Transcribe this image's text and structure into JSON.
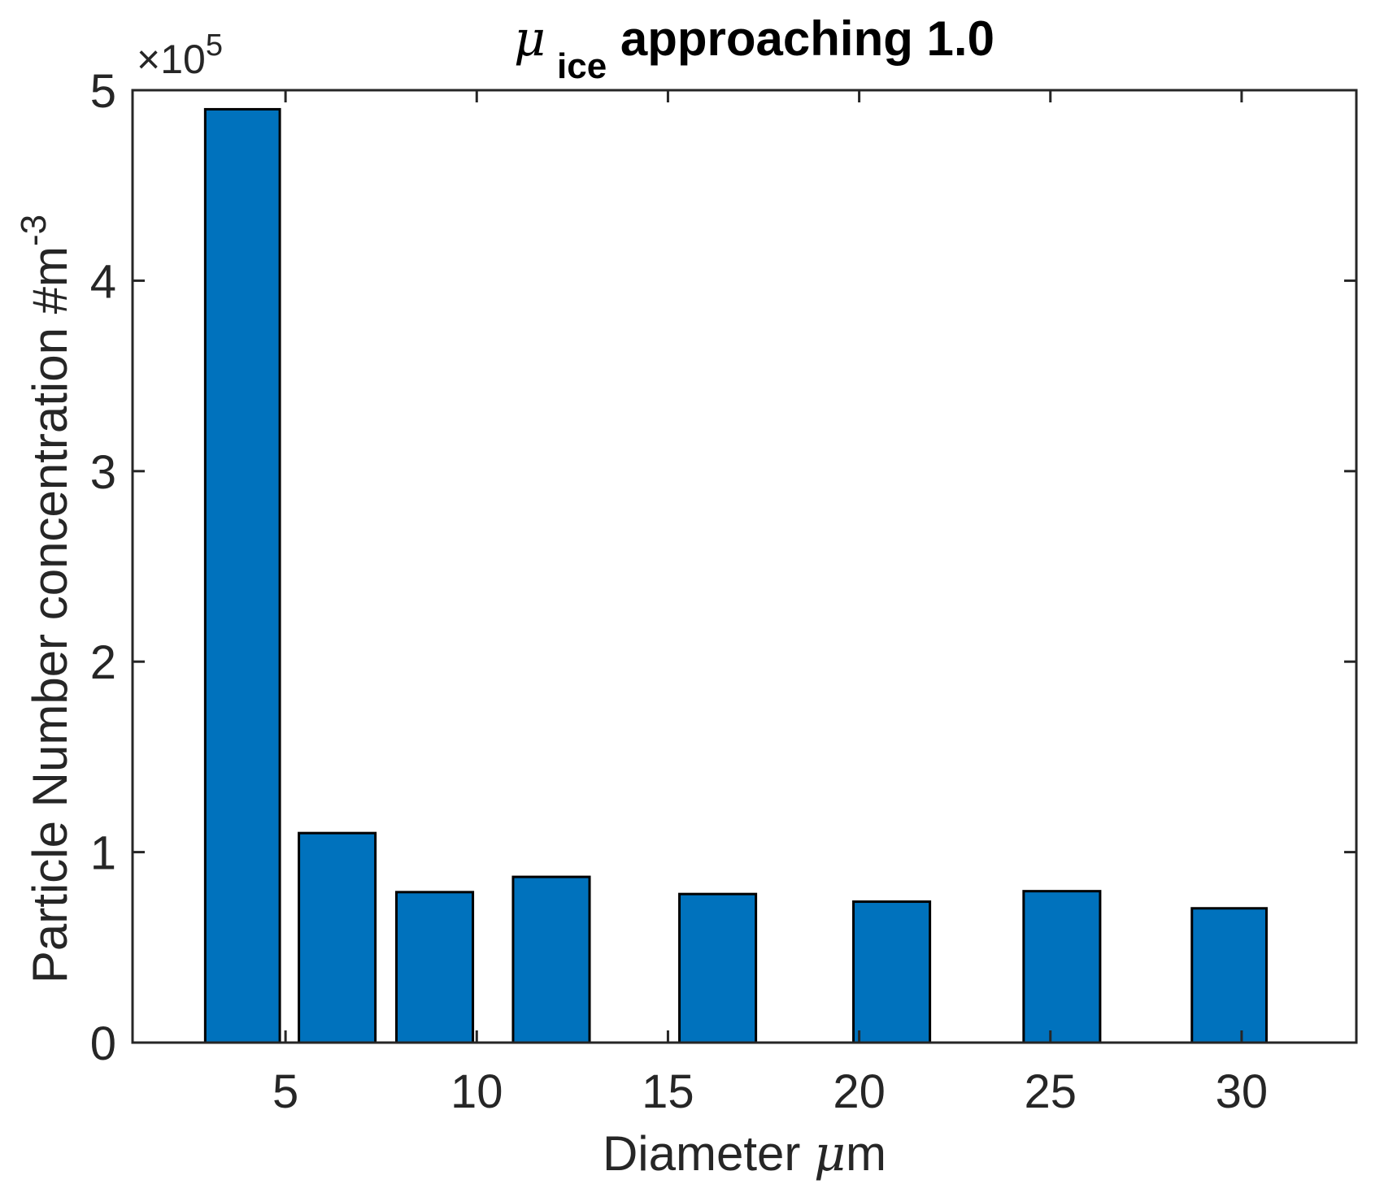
{
  "chart_data": {
    "type": "bar",
    "title": {
      "symbol": "μ",
      "subscript": "ice",
      "text": " approaching 1.0"
    },
    "xlabel": {
      "text": "Diameter ",
      "symbol": "μ",
      "unit": "m"
    },
    "ylabel": {
      "text": "Particle Number concentration #m",
      "superscript": "-3"
    },
    "y_exponent": {
      "prefix": "×10",
      "power": "5"
    },
    "xlim": [
      1,
      33
    ],
    "ylim": [
      0,
      5
    ],
    "xticks": [
      5,
      10,
      15,
      20,
      25,
      30
    ],
    "xtick_labels": [
      "5",
      "10",
      "15",
      "20",
      "25",
      "30"
    ],
    "yticks": [
      0,
      1,
      2,
      3,
      4,
      5
    ],
    "ytick_labels": [
      "0",
      "1",
      "2",
      "3",
      "4",
      "5"
    ],
    "bars": [
      {
        "x_start": 2.9,
        "x_end": 4.85,
        "value": 4.9
      },
      {
        "x_start": 5.35,
        "x_end": 7.35,
        "value": 1.1
      },
      {
        "x_start": 7.9,
        "x_end": 9.9,
        "value": 0.79
      },
      {
        "x_start": 10.95,
        "x_end": 12.95,
        "value": 0.87
      },
      {
        "x_start": 15.3,
        "x_end": 17.3,
        "value": 0.78
      },
      {
        "x_start": 19.85,
        "x_end": 21.85,
        "value": 0.74
      },
      {
        "x_start": 24.3,
        "x_end": 26.3,
        "value": 0.795
      },
      {
        "x_start": 28.7,
        "x_end": 30.65,
        "value": 0.705
      }
    ],
    "bar_color": "#0072BD",
    "edge_color": "#000000",
    "grid": false,
    "legend": "none"
  }
}
